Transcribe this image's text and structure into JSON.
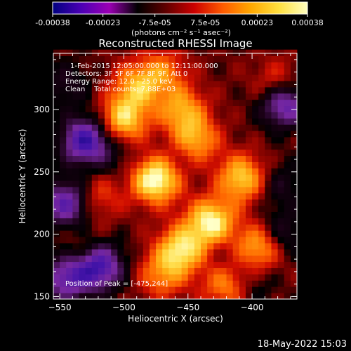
{
  "colorbar": {
    "ticks": [
      -0.00038,
      -0.00023,
      -7.5e-05,
      7.5e-05,
      0.00023,
      0.00038
    ],
    "tick_labels": [
      "-0.00038",
      "-0.00023",
      "-7.5e-05",
      "7.5e-05",
      "0.00023",
      "0.00038"
    ],
    "unit_label": "(photons cm⁻² s⁻¹ asec⁻²)",
    "colors": [
      "#000080",
      "#4b00b4",
      "#9b00b4",
      "#000000",
      "#600000",
      "#cc0000",
      "#ff5a00",
      "#ffa800",
      "#ffe040",
      "#ffffc0"
    ]
  },
  "chart_data": {
    "type": "heatmap",
    "title": "Reconstructed RHESSI Image",
    "xlabel": "Heliocentric X (arcsec)",
    "ylabel": "Heliocentric Y (arcsec)",
    "xlim": [
      -555,
      -365
    ],
    "ylim": [
      148,
      345
    ],
    "x_ticks": [
      -550,
      -500,
      -450,
      -400
    ],
    "x_tick_labels": [
      "−550",
      "−500",
      "−450",
      "−400"
    ],
    "y_ticks": [
      150,
      200,
      250,
      300
    ],
    "y_tick_labels": [
      "150",
      "200",
      "250",
      "300"
    ],
    "grid": false,
    "annotations": [
      "1-Feb-2015 12:05:00.000 to 12:11:00.000",
      "Detectors: 3F 5F 6F 7F 8F 9F, Att 0",
      "Energy Range: 12.0 - 25.0 keV",
      "Clean    Total counts: 7.88E+03"
    ],
    "peak_label": "Position of Peak = [-475,244]",
    "peak": {
      "x": -475,
      "y": 244
    },
    "value_range": [
      -0.00038,
      0.00038
    ],
    "features": [
      {
        "x": -475,
        "y": 244,
        "value": 0.00038
      },
      {
        "x": -500,
        "y": 292,
        "value": 0.00028
      },
      {
        "x": -490,
        "y": 318,
        "value": 0.00022
      },
      {
        "x": -432,
        "y": 210,
        "value": 0.00034
      },
      {
        "x": -455,
        "y": 188,
        "value": 0.0003
      },
      {
        "x": -445,
        "y": 275,
        "value": 0.00026
      },
      {
        "x": -455,
        "y": 300,
        "value": 0.00022
      },
      {
        "x": -408,
        "y": 245,
        "value": 0.00028
      },
      {
        "x": -395,
        "y": 190,
        "value": 0.00026
      },
      {
        "x": -420,
        "y": 160,
        "value": 0.0002
      },
      {
        "x": -470,
        "y": 168,
        "value": 0.00018
      },
      {
        "x": -520,
        "y": 230,
        "value": 0.00012
      },
      {
        "x": -470,
        "y": 330,
        "value": 0.00016
      },
      {
        "x": -530,
        "y": 185,
        "value": 0.0001
      },
      {
        "x": -380,
        "y": 320,
        "value": 0.00014
      },
      {
        "x": -530,
        "y": 275,
        "value": -0.00034
      },
      {
        "x": -545,
        "y": 225,
        "value": -0.00028
      },
      {
        "x": -520,
        "y": 175,
        "value": -0.00036
      },
      {
        "x": -545,
        "y": 165,
        "value": -0.00026
      },
      {
        "x": -375,
        "y": 305,
        "value": -0.0003
      },
      {
        "x": -378,
        "y": 240,
        "value": -0.0001
      },
      {
        "x": -455,
        "y": 265,
        "value": -8e-05
      },
      {
        "x": -505,
        "y": 262,
        "value": -6e-05
      },
      {
        "x": -420,
        "y": 182,
        "value": -6e-05
      },
      {
        "x": -378,
        "y": 200,
        "value": -0.00014
      },
      {
        "x": -545,
        "y": 320,
        "value": -0.0001
      },
      {
        "x": -400,
        "y": 160,
        "value": -8e-05
      }
    ]
  },
  "footer": {
    "date": "18-May-2022 15:03"
  }
}
